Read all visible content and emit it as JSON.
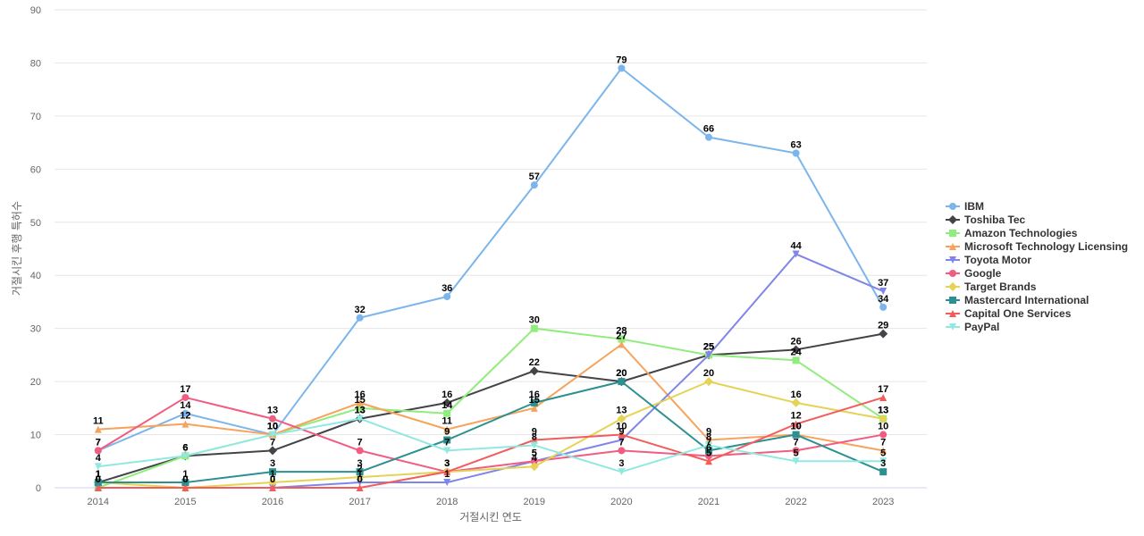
{
  "chart_data": {
    "type": "line",
    "xlabel": "거절시킨 연도",
    "ylabel": "거절시킨 후행 특허수",
    "ylim": [
      0,
      90
    ],
    "yticks": [
      0,
      10,
      20,
      30,
      40,
      50,
      60,
      70,
      80,
      90
    ],
    "grid": true,
    "legend_position": "right",
    "categories": [
      "2014",
      "2015",
      "2016",
      "2017",
      "2018",
      "2019",
      "2020",
      "2021",
      "2022",
      "2023"
    ],
    "series": [
      {
        "name": "IBM",
        "color": "#7cb5ec",
        "marker": "circle",
        "values": [
          7,
          14,
          10,
          32,
          36,
          57,
          79,
          66,
          63,
          34
        ]
      },
      {
        "name": "Toshiba Tec",
        "color": "#434348",
        "marker": "diamond",
        "values": [
          1,
          6,
          7,
          13,
          16,
          22,
          20,
          25,
          26,
          29
        ]
      },
      {
        "name": "Amazon Technologies",
        "color": "#90ed7d",
        "marker": "square",
        "values": [
          0,
          6,
          10,
          15,
          14,
          30,
          28,
          25,
          24,
          13
        ]
      },
      {
        "name": "Microsoft Technology Licensing",
        "color": "#f7a35c",
        "marker": "triangle",
        "values": [
          11,
          12,
          10,
          16,
          11,
          15,
          27,
          9,
          10,
          7
        ]
      },
      {
        "name": "Toyota Motor",
        "color": "#8085e9",
        "marker": "triangle-down",
        "values": [
          0,
          0,
          0,
          1,
          1,
          5,
          9,
          25,
          44,
          37
        ]
      },
      {
        "name": "Google",
        "color": "#f15c80",
        "marker": "circle",
        "values": [
          7,
          17,
          13,
          7,
          3,
          5,
          7,
          6,
          7,
          10
        ]
      },
      {
        "name": "Target Brands",
        "color": "#e4d354",
        "marker": "diamond",
        "values": [
          1,
          0,
          1,
          2,
          3,
          4,
          13,
          20,
          16,
          13
        ]
      },
      {
        "name": "Mastercard International",
        "color": "#2b908f",
        "marker": "square",
        "values": [
          1,
          1,
          3,
          3,
          9,
          16,
          20,
          7,
          10,
          3
        ]
      },
      {
        "name": "Capital One Services",
        "color": "#f45b5b",
        "marker": "triangle",
        "values": [
          0,
          0,
          0,
          0,
          3,
          9,
          10,
          5,
          12,
          17
        ]
      },
      {
        "name": "PayPal",
        "color": "#91e8e1",
        "marker": "triangle-down",
        "values": [
          4,
          6,
          10,
          13,
          7,
          8,
          3,
          8,
          5,
          5
        ]
      }
    ]
  }
}
